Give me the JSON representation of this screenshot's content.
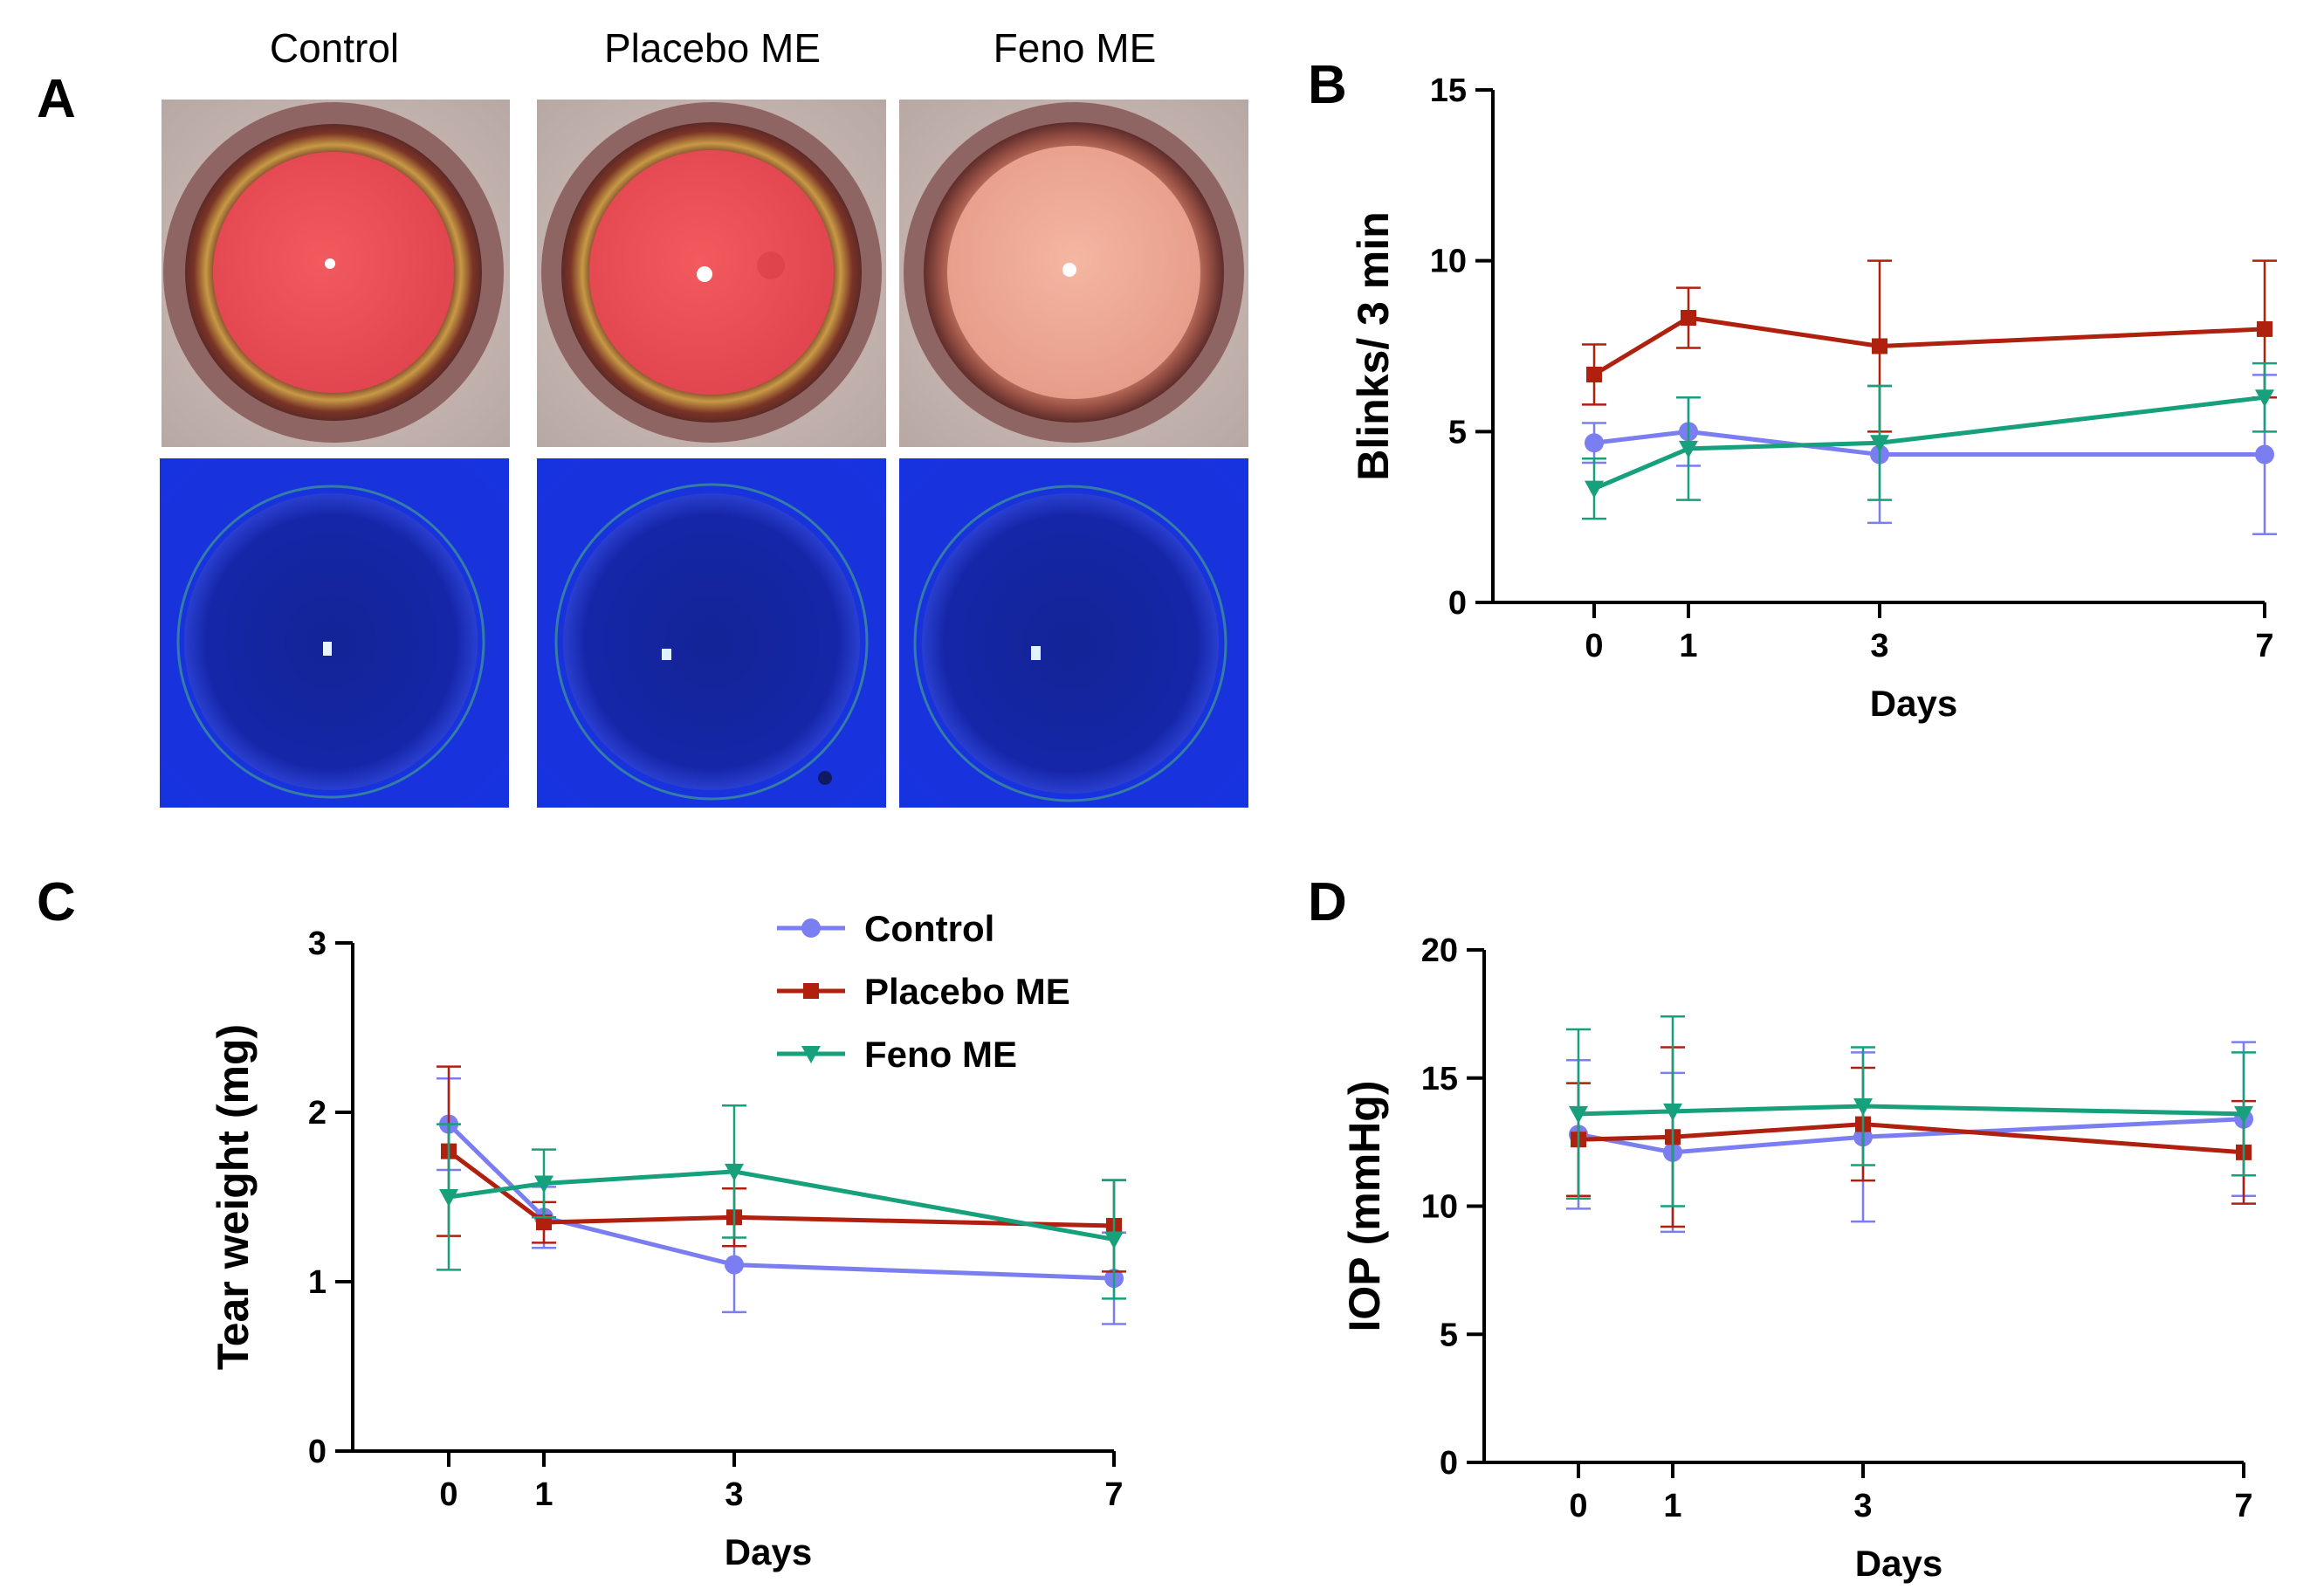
{
  "panels": {
    "a": "A",
    "b": "B",
    "c": "C",
    "d": "D"
  },
  "photo_columns": [
    "Control",
    "Placebo ME",
    "Feno ME"
  ],
  "series_style": {
    "Control": {
      "color": "#7b7ef0",
      "marker": "circle"
    },
    "Placebo ME": {
      "color": "#b0200e",
      "marker": "square"
    },
    "Feno ME": {
      "color": "#16a07c",
      "marker": "triangle-down"
    }
  },
  "legend": [
    "Control",
    "Placebo ME",
    "Feno ME"
  ],
  "chart_data": [
    {
      "panel": "B",
      "type": "line",
      "xlabel": "Days",
      "ylabel": "Blinks/ 3 min",
      "x": [
        0,
        1,
        3,
        7
      ],
      "xticks": [
        "0",
        "1",
        "3",
        "7"
      ],
      "ylim": [
        0,
        15
      ],
      "yticks": [
        "0",
        "5",
        "10",
        "15"
      ],
      "series": [
        {
          "name": "Control",
          "values": [
            4.67,
            5.0,
            4.33,
            4.33
          ],
          "errors": [
            0.58,
            1.0,
            2.0,
            2.33
          ]
        },
        {
          "name": "Placebo ME",
          "values": [
            6.67,
            8.33,
            7.5,
            8.0
          ],
          "errors": [
            0.88,
            0.88,
            2.5,
            2.0
          ]
        },
        {
          "name": "Feno ME",
          "values": [
            3.33,
            4.5,
            4.67,
            6.0
          ],
          "errors": [
            0.88,
            1.5,
            1.67,
            1.0
          ]
        }
      ]
    },
    {
      "panel": "C",
      "type": "line",
      "xlabel": "Days",
      "ylabel": "Tear weight (mg)",
      "x": [
        0,
        1,
        3,
        7
      ],
      "xticks": [
        "0",
        "1",
        "3",
        "7"
      ],
      "ylim": [
        0,
        3
      ],
      "yticks": [
        "0",
        "1",
        "2",
        "3"
      ],
      "legend_position": "top-right",
      "series": [
        {
          "name": "Control",
          "values": [
            1.93,
            1.38,
            1.1,
            1.02
          ],
          "errors": [
            0.27,
            0.18,
            0.28,
            0.27
          ]
        },
        {
          "name": "Placebo ME",
          "values": [
            1.77,
            1.35,
            1.38,
            1.33
          ],
          "errors": [
            0.5,
            0.12,
            0.17,
            0.27
          ]
        },
        {
          "name": "Feno ME",
          "values": [
            1.5,
            1.58,
            1.65,
            1.25
          ],
          "errors": [
            0.43,
            0.2,
            0.39,
            0.35
          ]
        }
      ]
    },
    {
      "panel": "D",
      "type": "line",
      "xlabel": "Days",
      "ylabel": "IOP (mmHg)",
      "x": [
        0,
        1,
        3,
        7
      ],
      "xticks": [
        "0",
        "1",
        "3",
        "7"
      ],
      "ylim": [
        0,
        20
      ],
      "yticks": [
        "0",
        "5",
        "10",
        "15",
        "20"
      ],
      "series": [
        {
          "name": "Control",
          "values": [
            12.8,
            12.1,
            12.7,
            13.4
          ],
          "errors": [
            2.9,
            3.1,
            3.3,
            3.0
          ]
        },
        {
          "name": "Placebo ME",
          "values": [
            12.6,
            12.7,
            13.2,
            12.1
          ],
          "errors": [
            2.2,
            3.5,
            2.2,
            2.0
          ]
        },
        {
          "name": "Feno ME",
          "values": [
            13.6,
            13.7,
            13.9,
            13.6
          ],
          "errors": [
            3.3,
            3.7,
            2.3,
            2.4
          ]
        }
      ]
    }
  ]
}
